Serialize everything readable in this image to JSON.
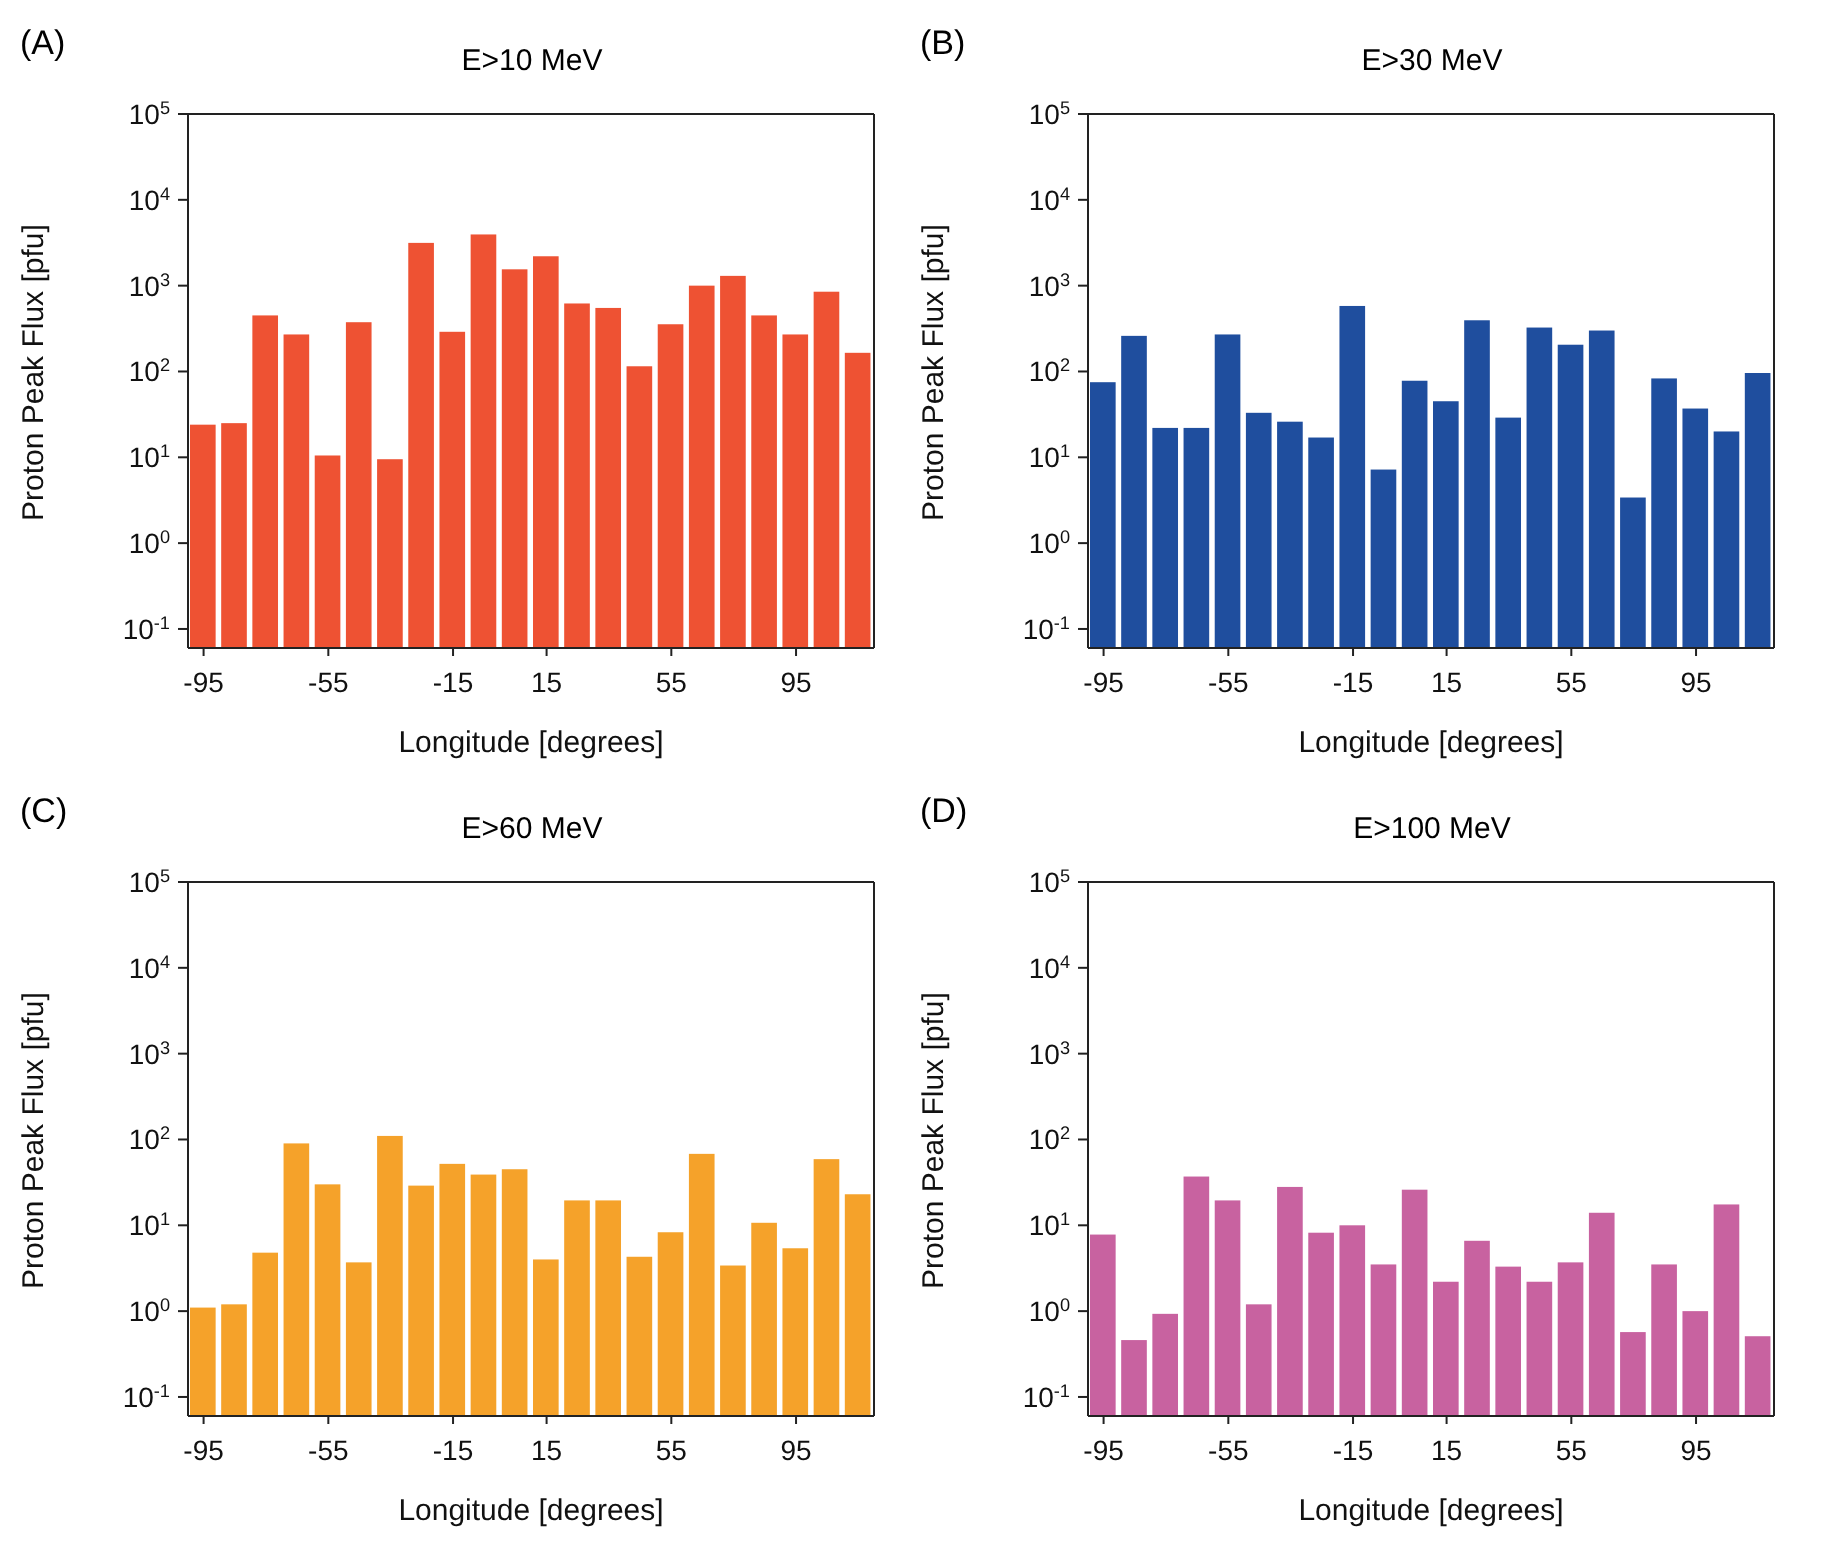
{
  "chart_data": [
    {
      "type": "bar",
      "title": "E>10 MeV",
      "xlabel": "Longitude [degrees]",
      "ylabel": "Proton Peak Flux [pfu]",
      "annotations": [
        "(A)"
      ],
      "log": "y",
      "grid": false,
      "legend": false,
      "x": [
        -95,
        -85,
        -75,
        -65,
        -55,
        -45,
        -35,
        -25,
        -15,
        -5,
        5,
        15,
        25,
        35,
        45,
        55,
        65,
        75,
        85,
        95,
        105,
        115
      ],
      "series": [
        {
          "color": "#ee5233",
          "values": [
            24,
            25,
            450,
            270,
            10.5,
            375,
            9.5,
            3150,
            290,
            3950,
            1550,
            2200,
            620,
            550,
            115,
            355,
            1000,
            1300,
            450,
            270,
            850,
            165
          ]
        }
      ],
      "xlim": [
        -100,
        120
      ],
      "xticks": [
        -95,
        -55,
        -15,
        15,
        55,
        95
      ],
      "ylim": [
        0.06,
        100000
      ],
      "yticks": [
        {
          "value": 0.1,
          "label": "10$^{-1}$"
        },
        {
          "value": 1,
          "label": "10$^{0}$"
        },
        {
          "value": 10,
          "label": "10$^{1}$"
        },
        {
          "value": 100,
          "label": "10$^{2}$"
        },
        {
          "value": 1000,
          "label": "10$^{3}$"
        },
        {
          "value": 10000,
          "label": "10$^{4}$"
        },
        {
          "value": 100000,
          "label": "10$^{5}$"
        }
      ]
    },
    {
      "type": "bar",
      "title": "E>30 MeV",
      "xlabel": "Longitude [degrees]",
      "ylabel": "Proton Peak Flux [pfu]",
      "annotations": [
        "(B)"
      ],
      "log": "y",
      "grid": false,
      "legend": false,
      "x": [
        -95,
        -85,
        -75,
        -65,
        -55,
        -45,
        -35,
        -25,
        -15,
        -5,
        5,
        15,
        25,
        35,
        45,
        55,
        65,
        75,
        85,
        95,
        105,
        115
      ],
      "series": [
        {
          "color": "#1f4e9e",
          "values": [
            75,
            260,
            22,
            22,
            270,
            33,
            26,
            17,
            580,
            7.2,
            78,
            45,
            395,
            29,
            325,
            205,
            300,
            3.4,
            83,
            37,
            20,
            96
          ]
        }
      ],
      "xlim": [
        -100,
        120
      ],
      "xticks": [
        -95,
        -55,
        -15,
        15,
        55,
        95
      ],
      "ylim": [
        0.06,
        100000
      ],
      "yticks": [
        {
          "value": 0.1,
          "label": "10$^{-1}$"
        },
        {
          "value": 1,
          "label": "10$^{0}$"
        },
        {
          "value": 10,
          "label": "10$^{1}$"
        },
        {
          "value": 100,
          "label": "10$^{2}$"
        },
        {
          "value": 1000,
          "label": "10$^{3}$"
        },
        {
          "value": 10000,
          "label": "10$^{4}$"
        },
        {
          "value": 100000,
          "label": "10$^{5}$"
        }
      ]
    },
    {
      "type": "bar",
      "title": "E>60 MeV",
      "xlabel": "Longitude [degrees]",
      "ylabel": "Proton Peak Flux [pfu]",
      "annotations": [
        "(C)"
      ],
      "log": "y",
      "grid": false,
      "legend": false,
      "x": [
        -95,
        -85,
        -75,
        -65,
        -55,
        -45,
        -35,
        -25,
        -15,
        -5,
        5,
        15,
        25,
        35,
        45,
        55,
        65,
        75,
        85,
        95,
        105,
        115
      ],
      "series": [
        {
          "color": "#f5a22a",
          "values": [
            1.1,
            1.2,
            4.8,
            90,
            30,
            3.7,
            110,
            29,
            52,
            39,
            45,
            4.0,
            19.5,
            19.5,
            4.3,
            8.3,
            68,
            3.4,
            10.7,
            5.4,
            59,
            23
          ]
        }
      ],
      "xlim": [
        -100,
        120
      ],
      "xticks": [
        -95,
        -55,
        -15,
        15,
        55,
        95
      ],
      "ylim": [
        0.06,
        100000
      ],
      "yticks": [
        {
          "value": 0.1,
          "label": "10$^{-1}$"
        },
        {
          "value": 1,
          "label": "10$^{0}$"
        },
        {
          "value": 10,
          "label": "10$^{1}$"
        },
        {
          "value": 100,
          "label": "10$^{2}$"
        },
        {
          "value": 1000,
          "label": "10$^{3}$"
        },
        {
          "value": 10000,
          "label": "10$^{4}$"
        },
        {
          "value": 100000,
          "label": "10$^{5}$"
        }
      ]
    },
    {
      "type": "bar",
      "title": "E>100 MeV",
      "xlabel": "Longitude [degrees]",
      "ylabel": "Proton Peak Flux [pfu]",
      "annotations": [
        "(D)"
      ],
      "log": "y",
      "grid": false,
      "legend": false,
      "x": [
        -95,
        -85,
        -75,
        -65,
        -55,
        -45,
        -35,
        -25,
        -15,
        -5,
        5,
        15,
        25,
        35,
        45,
        55,
        65,
        75,
        85,
        95,
        105,
        115
      ],
      "series": [
        {
          "color": "#c862a0",
          "values": [
            7.8,
            0.46,
            0.93,
            37,
            19.5,
            1.2,
            28,
            8.2,
            10,
            3.5,
            26,
            2.2,
            6.6,
            3.3,
            2.2,
            3.7,
            14,
            0.57,
            3.5,
            1.0,
            17.5,
            0.51
          ]
        }
      ],
      "xlim": [
        -100,
        120
      ],
      "xticks": [
        -95,
        -55,
        -15,
        15,
        55,
        95
      ],
      "ylim": [
        0.06,
        100000
      ],
      "yticks": [
        {
          "value": 0.1,
          "label": "10$^{-1}$"
        },
        {
          "value": 1,
          "label": "10$^{0}$"
        },
        {
          "value": 10,
          "label": "10$^{1}$"
        },
        {
          "value": 100,
          "label": "10$^{2}$"
        },
        {
          "value": 1000,
          "label": "10$^{3}$"
        },
        {
          "value": 10000,
          "label": "10$^{4}$"
        },
        {
          "value": 100000,
          "label": "10$^{5}$"
        }
      ]
    }
  ]
}
